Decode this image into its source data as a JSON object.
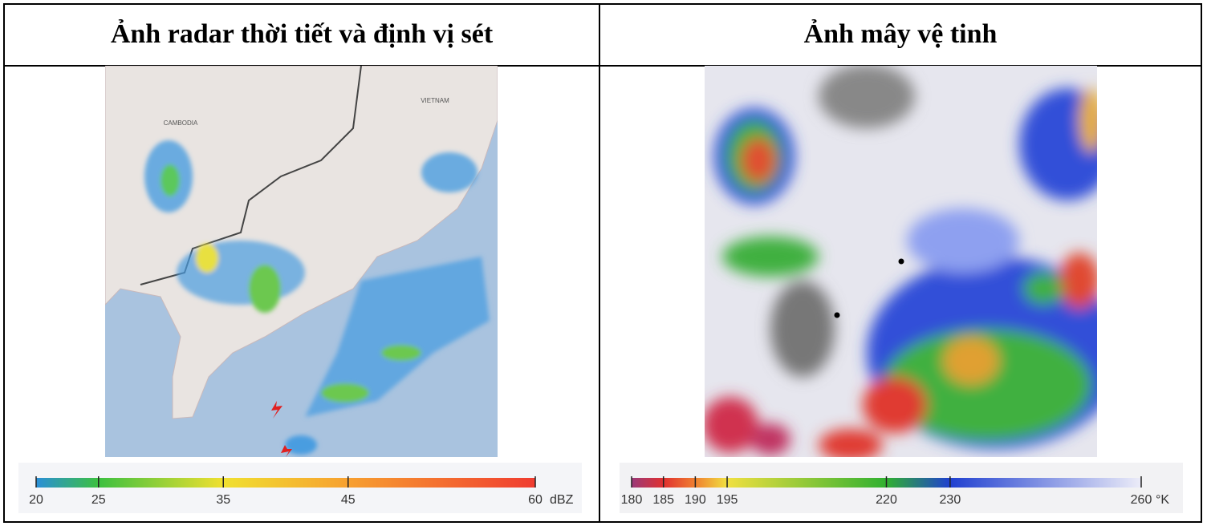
{
  "table": {
    "headers": [
      "Ảnh radar thời tiết và định vị sét",
      "Ảnh mây vệ tinh"
    ]
  },
  "radar": {
    "map_labels": [
      "CAMBODIA",
      "VIETNAM"
    ],
    "colorbar": {
      "unit": "dBZ",
      "lim": [
        20,
        60
      ],
      "ticks": [
        20,
        25,
        35,
        45,
        60
      ],
      "colors": [
        "#2a8fd8",
        "#3cc040",
        "#f0e030",
        "#f7a030",
        "#f03c30"
      ]
    }
  },
  "satellite": {
    "colorbar": {
      "unit": "°K",
      "lim": [
        180,
        260
      ],
      "ticks": [
        180,
        185,
        190,
        195,
        220,
        230,
        260
      ],
      "colors": [
        "#9a3a7a",
        "#e03030",
        "#f08030",
        "#f0e040",
        "#30b030",
        "#2040d0",
        "#ececf8"
      ]
    }
  }
}
